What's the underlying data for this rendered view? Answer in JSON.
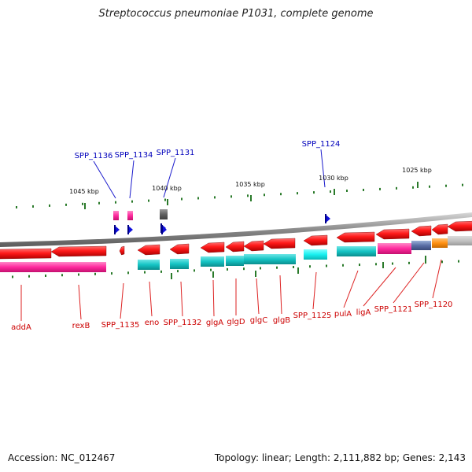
{
  "title": "Streptococcus pneumoniae P1031, complete genome",
  "accession": "Accession: NC_012467",
  "summary": "Topology: linear; Length: 2,111,882 bp; Genes: 2,143",
  "scale_labels": [
    "1045 kbp",
    "1040 kbp",
    "1035 kbp",
    "1030 kbp",
    "1025 kbp"
  ],
  "top_genes": [
    "SPP_1136",
    "SPP_1134",
    "SPP_1131",
    "SPP_1124"
  ],
  "bottom_genes": [
    "addA",
    "rexB",
    "SPP_1135",
    "eno",
    "SPP_1132",
    "glgA",
    "glgD",
    "glgC",
    "glgB",
    "SPP_1125",
    "pulA",
    "ligA",
    "SPP_1121",
    "SPP_1120"
  ],
  "colors": {
    "forward_gene": "#ff2222",
    "cds_cyan": "#14c8c8",
    "cds_magenta": "#ff2a9e",
    "strand_marker": "#1010dd",
    "tick": "#2a7a2a",
    "bottom_label": "#cc0000",
    "top_label": "#0000bb",
    "backbone": "#8c8c8c"
  }
}
